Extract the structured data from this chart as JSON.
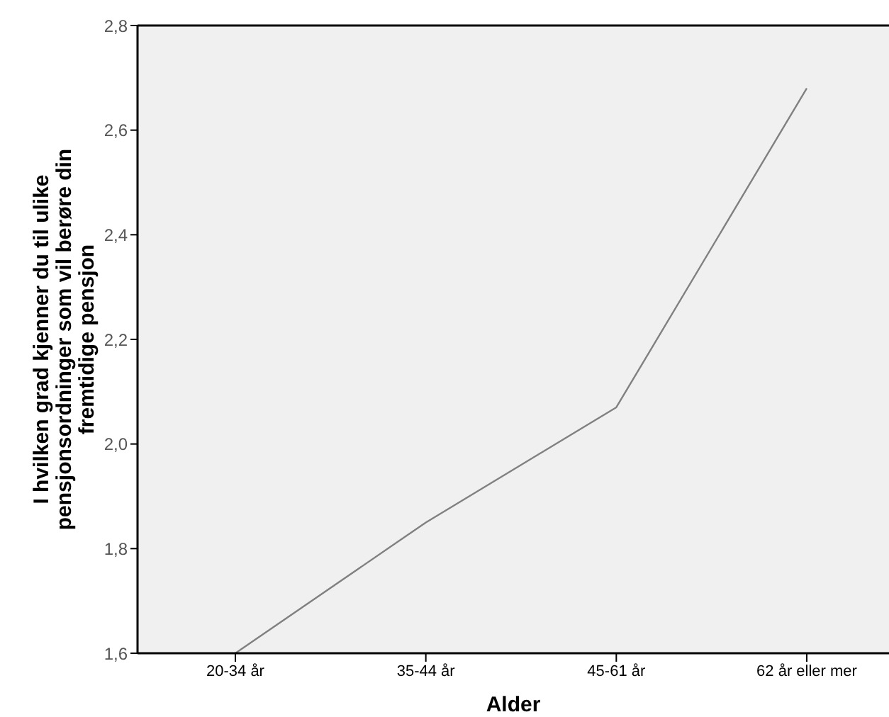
{
  "chart_data": {
    "type": "line",
    "xlabel": "Alder",
    "ylabel": "I hvilken grad kjenner du til ulike pensjonsordninger som vil berøre din fremtidige pensjon",
    "categories": [
      "20-34 år",
      "35-44 år",
      "45-61 år",
      "62 år eller mer"
    ],
    "series": [
      {
        "color": "#808080",
        "values": [
          1.6,
          1.85,
          2.07,
          2.68
        ]
      }
    ],
    "ylim": [
      1.6,
      2.8
    ],
    "yticks": [
      {
        "value": 1.6,
        "label": "1,6"
      },
      {
        "value": 1.8,
        "label": "1,8"
      },
      {
        "value": 2.0,
        "label": "2,0"
      },
      {
        "value": 2.2,
        "label": "2,2"
      },
      {
        "value": 2.4,
        "label": "2,4"
      },
      {
        "value": 2.6,
        "label": "2,6"
      },
      {
        "value": 2.8,
        "label": "2,8"
      }
    ],
    "grid": false,
    "legend": false,
    "marker": "none",
    "line_style": "solid"
  }
}
